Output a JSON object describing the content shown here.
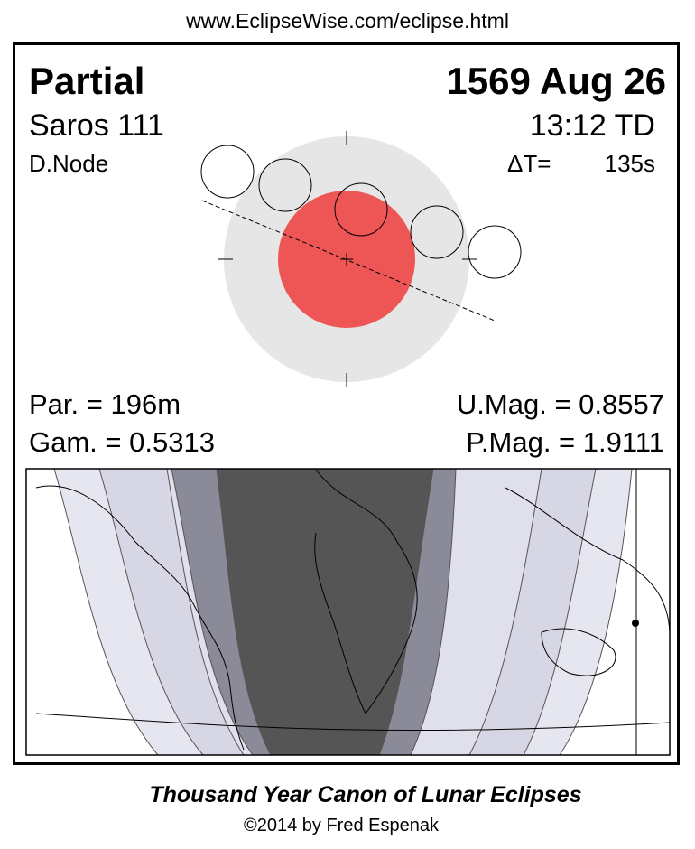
{
  "header": {
    "url": "www.EclipseWise.com/eclipse.html"
  },
  "eclipse": {
    "type": "Partial",
    "date": "1569 Aug 26",
    "saros": "Saros 111",
    "time": "13:12 TD",
    "node": "D.Node",
    "delta_t_label": "ΔT=",
    "delta_t_value": "135s",
    "parameters": {
      "par": "Par. = 196m",
      "gam": "Gam. = 0.5313",
      "umag": "U.Mag. = 0.8557",
      "pmag": "P.Mag. = 1.9111"
    }
  },
  "footer": {
    "title": "Thousand Year Canon of Lunar Eclipses",
    "credit": "©2014 by Fred Espenak"
  }
}
